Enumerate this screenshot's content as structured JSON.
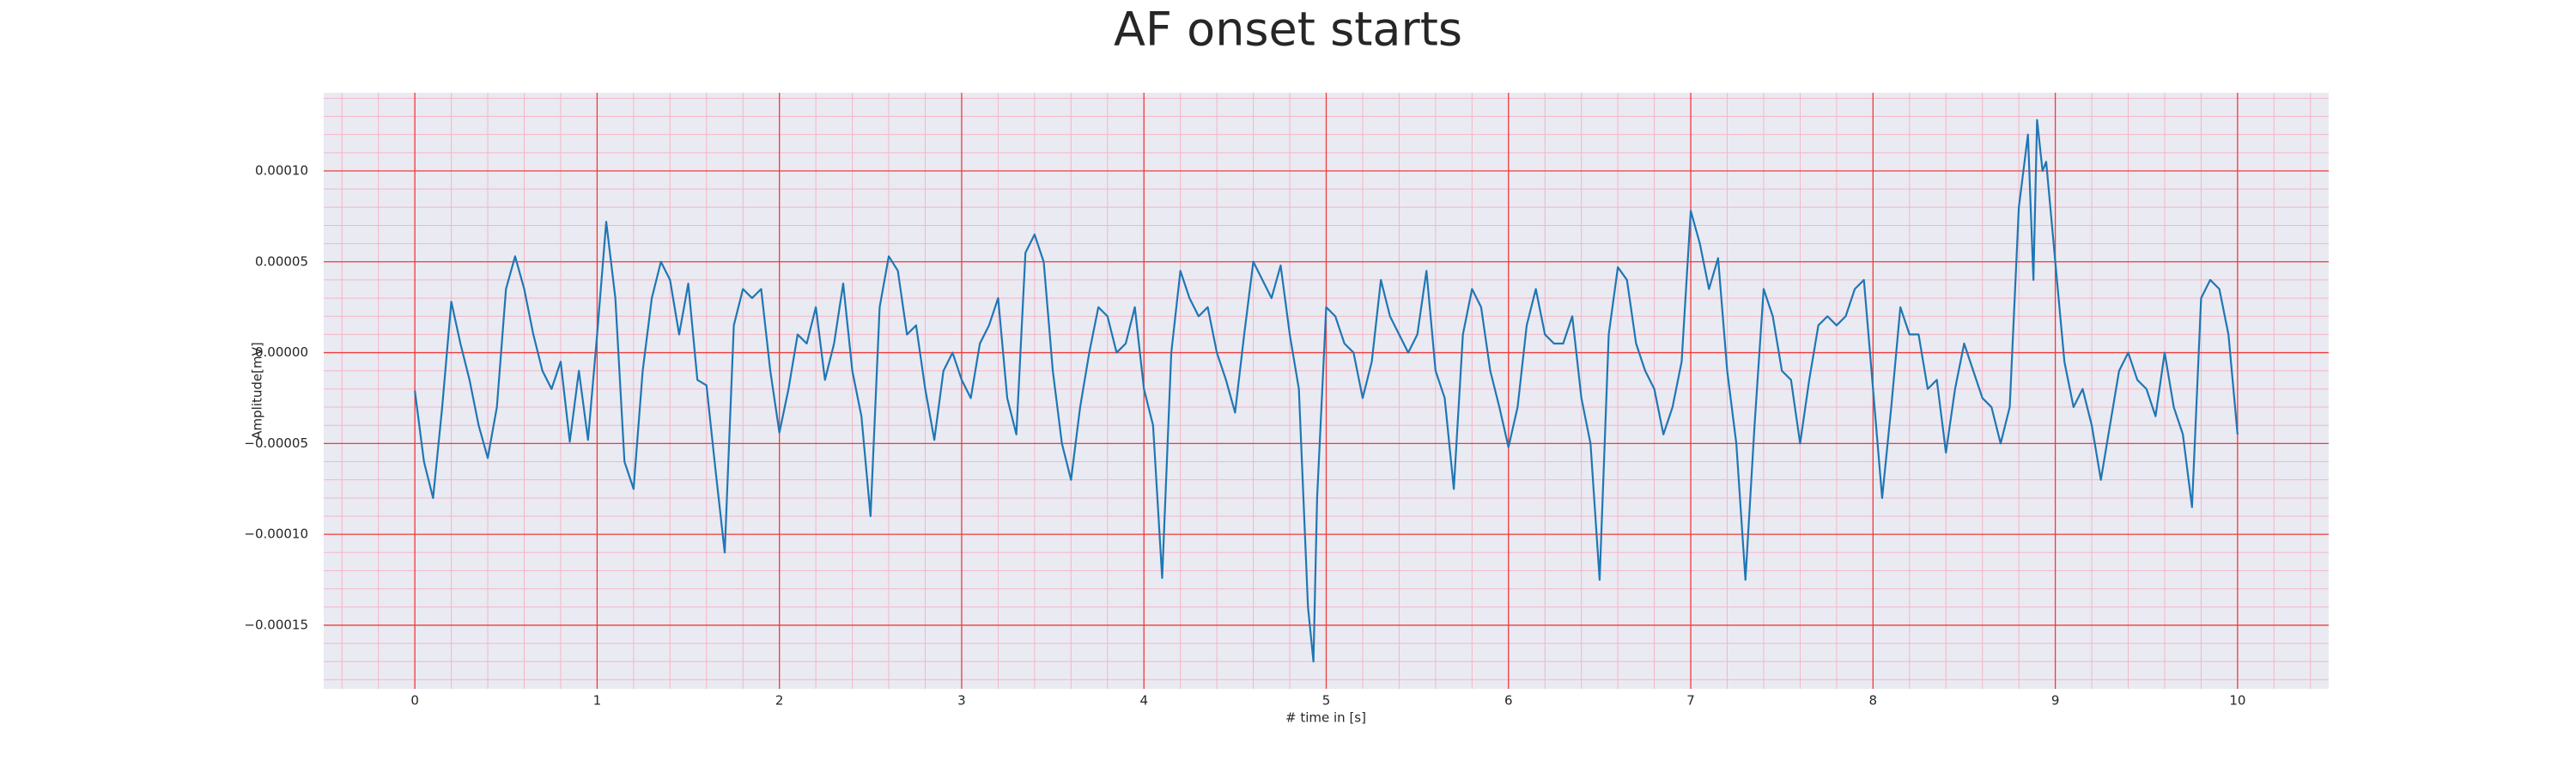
{
  "chart_data": {
    "type": "line",
    "title": "AF onset starts",
    "xlabel": "# time in [s]",
    "ylabel": "Amplitude[mV]",
    "x": [
      0,
      0.05,
      0.1,
      0.15,
      0.2,
      0.25,
      0.3,
      0.35,
      0.4,
      0.45,
      0.5,
      0.55,
      0.6,
      0.65,
      0.7,
      0.75,
      0.8,
      0.85,
      0.9,
      0.95,
      1.0,
      1.05,
      1.1,
      1.15,
      1.2,
      1.25,
      1.3,
      1.35,
      1.4,
      1.45,
      1.5,
      1.55,
      1.6,
      1.65,
      1.7,
      1.75,
      1.8,
      1.85,
      1.9,
      1.95,
      2.0,
      2.05,
      2.1,
      2.15,
      2.2,
      2.25,
      2.3,
      2.35,
      2.4,
      2.45,
      2.5,
      2.55,
      2.6,
      2.65,
      2.7,
      2.75,
      2.8,
      2.85,
      2.9,
      2.95,
      3.0,
      3.05,
      3.1,
      3.15,
      3.2,
      3.25,
      3.3,
      3.35,
      3.4,
      3.45,
      3.5,
      3.55,
      3.6,
      3.65,
      3.7,
      3.75,
      3.8,
      3.85,
      3.9,
      3.95,
      4.0,
      4.05,
      4.1,
      4.15,
      4.2,
      4.25,
      4.3,
      4.35,
      4.4,
      4.45,
      4.5,
      4.55,
      4.6,
      4.65,
      4.7,
      4.75,
      4.8,
      4.85,
      4.9,
      4.93,
      4.95,
      5.0,
      5.05,
      5.1,
      5.15,
      5.2,
      5.25,
      5.3,
      5.35,
      5.4,
      5.45,
      5.5,
      5.55,
      5.6,
      5.65,
      5.7,
      5.75,
      5.8,
      5.85,
      5.9,
      5.95,
      6.0,
      6.05,
      6.1,
      6.15,
      6.2,
      6.25,
      6.3,
      6.35,
      6.4,
      6.45,
      6.5,
      6.55,
      6.6,
      6.65,
      6.7,
      6.75,
      6.8,
      6.85,
      6.9,
      6.95,
      7.0,
      7.05,
      7.1,
      7.15,
      7.2,
      7.25,
      7.3,
      7.35,
      7.4,
      7.45,
      7.5,
      7.55,
      7.6,
      7.65,
      7.7,
      7.75,
      7.8,
      7.85,
      7.9,
      7.95,
      8.0,
      8.05,
      8.1,
      8.15,
      8.2,
      8.25,
      8.3,
      8.35,
      8.4,
      8.45,
      8.5,
      8.55,
      8.6,
      8.65,
      8.7,
      8.75,
      8.8,
      8.85,
      8.88,
      8.9,
      8.93,
      8.95,
      9.0,
      9.05,
      9.1,
      9.15,
      9.2,
      9.25,
      9.3,
      9.35,
      9.4,
      9.45,
      9.5,
      9.55,
      9.6,
      9.65,
      9.7,
      9.75,
      9.8,
      9.85,
      9.9,
      9.95,
      10.0
    ],
    "series": [
      {
        "color": "#1f77b4",
        "values": [
          -2.1e-05,
          -6e-05,
          -8e-05,
          -3e-05,
          2.8e-05,
          5e-06,
          -1.5e-05,
          -4e-05,
          -5.8e-05,
          -3e-05,
          3.5e-05,
          5.3e-05,
          3.5e-05,
          1e-05,
          -1e-05,
          -2e-05,
          -5e-06,
          -4.9e-05,
          -1e-05,
          -4.8e-05,
          1e-05,
          7.2e-05,
          3e-05,
          -6e-05,
          -7.5e-05,
          -1e-05,
          3e-05,
          5e-05,
          4e-05,
          1e-05,
          3.8e-05,
          -1.5e-05,
          -1.8e-05,
          -6.5e-05,
          -0.00011,
          1.5e-05,
          3.5e-05,
          3e-05,
          3.5e-05,
          -1e-05,
          -4.4e-05,
          -2e-05,
          1e-05,
          5e-06,
          2.5e-05,
          -1.5e-05,
          5e-06,
          3.8e-05,
          -1e-05,
          -3.5e-05,
          -9e-05,
          2.5e-05,
          5.3e-05,
          4.5e-05,
          1e-05,
          1.5e-05,
          -2e-05,
          -4.8e-05,
          -1e-05,
          0,
          -1.5e-05,
          -2.5e-05,
          5e-06,
          1.5e-05,
          3e-05,
          -2.5e-05,
          -4.5e-05,
          5.5e-05,
          6.5e-05,
          5e-05,
          -1e-05,
          -5e-05,
          -7e-05,
          -3e-05,
          0,
          2.5e-05,
          2e-05,
          0,
          5e-06,
          2.5e-05,
          -2e-05,
          -4e-05,
          -0.000124,
          0,
          4.5e-05,
          3e-05,
          2e-05,
          2.5e-05,
          0,
          -1.5e-05,
          -3.3e-05,
          1e-05,
          5e-05,
          4e-05,
          3e-05,
          4.8e-05,
          1e-05,
          -2e-05,
          -0.00014,
          -0.00017,
          -8e-05,
          2.5e-05,
          2e-05,
          5e-06,
          0,
          -2.5e-05,
          -5e-06,
          4e-05,
          2e-05,
          1e-05,
          0,
          1e-05,
          4.5e-05,
          -1e-05,
          -2.5e-05,
          -7.5e-05,
          1e-05,
          3.5e-05,
          2.5e-05,
          -1e-05,
          -3e-05,
          -5.2e-05,
          -3e-05,
          1.5e-05,
          3.5e-05,
          1e-05,
          5e-06,
          5e-06,
          2e-05,
          -2.5e-05,
          -5e-05,
          -0.000125,
          1e-05,
          4.7e-05,
          4e-05,
          5e-06,
          -1e-05,
          -2e-05,
          -4.5e-05,
          -3e-05,
          -5e-06,
          7.8e-05,
          6e-05,
          3.5e-05,
          5.2e-05,
          -1e-05,
          -5e-05,
          -0.000125,
          -4e-05,
          3.5e-05,
          2e-05,
          -1e-05,
          -1.5e-05,
          -5e-05,
          -1.5e-05,
          1.5e-05,
          2e-05,
          1.5e-05,
          2e-05,
          3.5e-05,
          4e-05,
          -2e-05,
          -8e-05,
          -3e-05,
          2.5e-05,
          1e-05,
          1e-05,
          -2e-05,
          -1.5e-05,
          -5.5e-05,
          -2e-05,
          5e-06,
          -1e-05,
          -2.5e-05,
          -3e-05,
          -5e-05,
          -3e-05,
          8e-05,
          0.00012,
          4e-05,
          0.000128,
          0.0001,
          0.000105,
          5e-05,
          -5e-06,
          -3e-05,
          -2e-05,
          -4e-05,
          -7e-05,
          -4e-05,
          -1e-05,
          0,
          -1.5e-05,
          -2e-05,
          -3.5e-05,
          0,
          -3e-05,
          -4.5e-05,
          -8.5e-05,
          3e-05,
          4e-05,
          3.5e-05,
          1e-05,
          -4.5e-05
        ]
      }
    ],
    "xlim": [
      -0.5,
      10.5
    ],
    "ylim": [
      -0.000185,
      0.000143
    ],
    "xticks": [
      0,
      1,
      2,
      3,
      4,
      5,
      6,
      7,
      8,
      9,
      10
    ],
    "yticks": [
      {
        "value": -0.00015,
        "label": "−0.00015"
      },
      {
        "value": -0.0001,
        "label": "−0.00010"
      },
      {
        "value": -5e-05,
        "label": "−0.00005"
      },
      {
        "value": 0,
        "label": "0.00000"
      },
      {
        "value": 5e-05,
        "label": "0.00005"
      },
      {
        "value": 0.0001,
        "label": "0.00010"
      }
    ],
    "grid": true,
    "minor_grid": true
  }
}
